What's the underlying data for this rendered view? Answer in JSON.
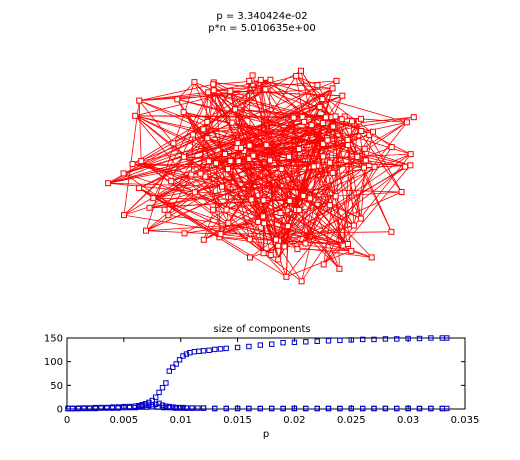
{
  "graph_title": {
    "line1": "p = 3.340424e-02",
    "line2": "p*n = 5.010635e+00"
  },
  "colors": {
    "graph": "#ff0000",
    "markers": "#0000cc",
    "axes": "#000000"
  },
  "chart_data": {
    "type": "scatter",
    "title": "size of components",
    "xlabel": "p",
    "ylabel": "",
    "xlim": [
      0,
      0.035
    ],
    "ylim": [
      0,
      150
    ],
    "xticks": [
      "0",
      "0.005",
      "0.01",
      "0.015",
      "0.02",
      "0.025",
      "0.03",
      "0.035"
    ],
    "yticks": [
      "0",
      "50",
      "100",
      "150"
    ],
    "marker": "square",
    "series": [
      {
        "x": [
          0.0001,
          0.0005,
          0.001,
          0.0015,
          0.002,
          0.0025,
          0.003,
          0.0035,
          0.004,
          0.0045,
          0.005,
          0.0055,
          0.006,
          0.0063,
          0.0066,
          0.0069,
          0.0072,
          0.0075,
          0.0078,
          0.0081,
          0.0084,
          0.0087,
          0.009,
          0.0093,
          0.0096,
          0.0099,
          0.0102,
          0.0105,
          0.0108,
          0.0112,
          0.0116,
          0.012,
          0.0125,
          0.013,
          0.0135,
          0.014,
          0.015,
          0.016,
          0.017,
          0.018,
          0.019,
          0.02,
          0.021,
          0.022,
          0.023,
          0.024,
          0.025,
          0.026,
          0.027,
          0.028,
          0.029,
          0.03,
          0.031,
          0.032,
          0.033,
          0.0334
        ],
        "values": [
          1,
          1,
          2,
          2,
          2,
          3,
          3,
          3,
          4,
          4,
          5,
          5,
          6,
          7,
          9,
          11,
          14,
          18,
          25,
          35,
          45,
          55,
          80,
          88,
          95,
          104,
          112,
          116,
          119,
          121,
          122,
          123,
          124,
          126,
          127,
          128,
          130,
          132,
          135,
          137,
          140,
          141,
          142,
          143,
          144,
          145,
          146,
          147,
          147,
          148,
          148,
          149,
          149,
          150,
          150,
          150
        ]
      },
      {
        "x": [
          0.0001,
          0.0005,
          0.001,
          0.0015,
          0.002,
          0.0025,
          0.003,
          0.0035,
          0.004,
          0.0045,
          0.005,
          0.0055,
          0.006,
          0.0063,
          0.0066,
          0.0069,
          0.0072,
          0.0075,
          0.0078,
          0.0081,
          0.0084,
          0.0087,
          0.009,
          0.0093,
          0.0096,
          0.0099,
          0.0102,
          0.0105,
          0.011,
          0.0115,
          0.012,
          0.013,
          0.014,
          0.015,
          0.016,
          0.017,
          0.018,
          0.019,
          0.02,
          0.021,
          0.022,
          0.023,
          0.024,
          0.025,
          0.026,
          0.027,
          0.028,
          0.029,
          0.03,
          0.031,
          0.032,
          0.033,
          0.0334
        ],
        "values": [
          1,
          1,
          1,
          2,
          2,
          2,
          3,
          3,
          3,
          4,
          4,
          5,
          6,
          6,
          7,
          8,
          8,
          9,
          10,
          12,
          8,
          6,
          5,
          4,
          3,
          3,
          3,
          2,
          2,
          2,
          2,
          1,
          1,
          1,
          1,
          1,
          1,
          1,
          1,
          1,
          1,
          1,
          1,
          1,
          1,
          1,
          1,
          1,
          1,
          1,
          1,
          1,
          1
        ]
      },
      {
        "x": [
          0.0001,
          0.0005,
          0.001,
          0.0015,
          0.002,
          0.0025,
          0.003,
          0.0035,
          0.004,
          0.0045,
          0.005,
          0.0055,
          0.006,
          0.0065,
          0.007,
          0.0075,
          0.008,
          0.0085,
          0.009,
          0.0095,
          0.01,
          0.0105,
          0.011,
          0.012,
          0.013,
          0.014,
          0.015,
          0.016,
          0.017,
          0.018,
          0.019,
          0.02,
          0.021,
          0.022,
          0.023,
          0.024,
          0.025,
          0.026,
          0.027,
          0.028,
          0.029,
          0.03,
          0.031,
          0.032,
          0.033
        ],
        "values": [
          1,
          1,
          1,
          1,
          1,
          1,
          2,
          2,
          2,
          2,
          3,
          3,
          3,
          4,
          4,
          5,
          4,
          3,
          3,
          2,
          2,
          2,
          2,
          2,
          1,
          1,
          1,
          1,
          1,
          1,
          1,
          1,
          1,
          1,
          1,
          1,
          1,
          1,
          1,
          1,
          1,
          1,
          1,
          1,
          1
        ]
      }
    ]
  }
}
